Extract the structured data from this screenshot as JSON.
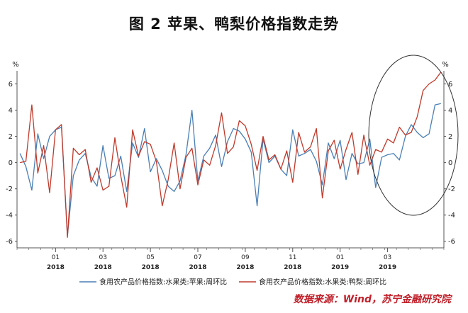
{
  "title": "图 2    苹果、鸭梨价格指数走势",
  "source": "数据来源：Wind，苏宁金融研究院",
  "colors": {
    "apple": "#4a7fb5",
    "pear": "#c0392b",
    "axis": "#555555",
    "circle": "#333333"
  },
  "chart_data": {
    "type": "line",
    "ylabel_left": "%",
    "ylabel_right": "%",
    "ylim": [
      -6.5,
      7
    ],
    "yticks": [
      -6,
      -4,
      -2,
      0,
      2,
      4,
      6
    ],
    "x_ticks": [
      {
        "month": "01",
        "year": "2018",
        "idx": 6
      },
      {
        "month": "03",
        "year": "2018",
        "idx": 14
      },
      {
        "month": "05",
        "year": "2018",
        "idx": 22
      },
      {
        "month": "07",
        "year": "2018",
        "idx": 30
      },
      {
        "month": "09",
        "year": "2018",
        "idx": 38
      },
      {
        "month": "11",
        "year": "2018",
        "idx": 46
      },
      {
        "month": "01",
        "year": "2019",
        "idx": 54
      },
      {
        "month": "03",
        "year": "2019",
        "idx": 62
      }
    ],
    "n_points": 72,
    "series": [
      {
        "name": "食用农产品价格指数:水果类:苹果:周环比",
        "values": [
          0.7,
          -0.3,
          -2.1,
          2.2,
          0.3,
          2.0,
          2.5,
          2.7,
          -5.6,
          -1.0,
          0.2,
          0.7,
          -1.1,
          -1.8,
          1.3,
          -1.2,
          -1.0,
          0.5,
          -2.2,
          1.5,
          0.4,
          2.6,
          -0.7,
          0.3,
          -0.6,
          -1.8,
          -2.2,
          -1.4,
          0.6,
          4.0,
          -1.4,
          0.5,
          1.1,
          2.1,
          -0.3,
          1.6,
          2.6,
          2.4,
          1.8,
          0.8,
          -3.3,
          1.8,
          0.0,
          0.5,
          -0.5,
          -1.0,
          2.5,
          0.5,
          0.7,
          1.0,
          0.1,
          -1.7,
          1.5,
          0.3,
          1.7,
          -1.3,
          0.7,
          -0.1,
          0.0,
          1.8,
          -1.9,
          0.4,
          0.6,
          0.7,
          0.2,
          2.0,
          2.9,
          2.3,
          1.9,
          2.2,
          4.4,
          4.5
        ],
        "color_key": "apple"
      },
      {
        "name": "食用农产品价格指数:水果类:鸭梨:周环比",
        "values": [
          0.0,
          0.1,
          4.4,
          -0.8,
          1.3,
          -2.3,
          2.5,
          2.9,
          -5.7,
          1.1,
          0.6,
          1.0,
          -1.5,
          -0.4,
          -2.1,
          -1.8,
          1.9,
          -1.0,
          -3.4,
          2.5,
          0.5,
          1.6,
          1.4,
          0.1,
          -3.3,
          -1.3,
          1.5,
          -2.0,
          0.4,
          1.1,
          -1.7,
          0.2,
          -0.2,
          1.3,
          3.8,
          0.7,
          1.2,
          3.2,
          2.8,
          1.4,
          -0.6,
          2.0,
          0.2,
          0.6,
          -0.5,
          0.9,
          -1.5,
          2.3,
          0.8,
          1.2,
          2.6,
          -2.7,
          0.9,
          1.7,
          -0.5,
          1.0,
          2.3,
          -0.9,
          2.1,
          -0.2,
          1.0,
          0.8,
          1.8,
          1.5,
          2.7,
          2.1,
          2.3,
          3.5,
          5.5,
          6.0,
          6.3,
          6.9
        ],
        "color_key": "pear"
      }
    ],
    "legend_position": "bottom",
    "annotation": "ellipse highlighting 2019 rise"
  }
}
